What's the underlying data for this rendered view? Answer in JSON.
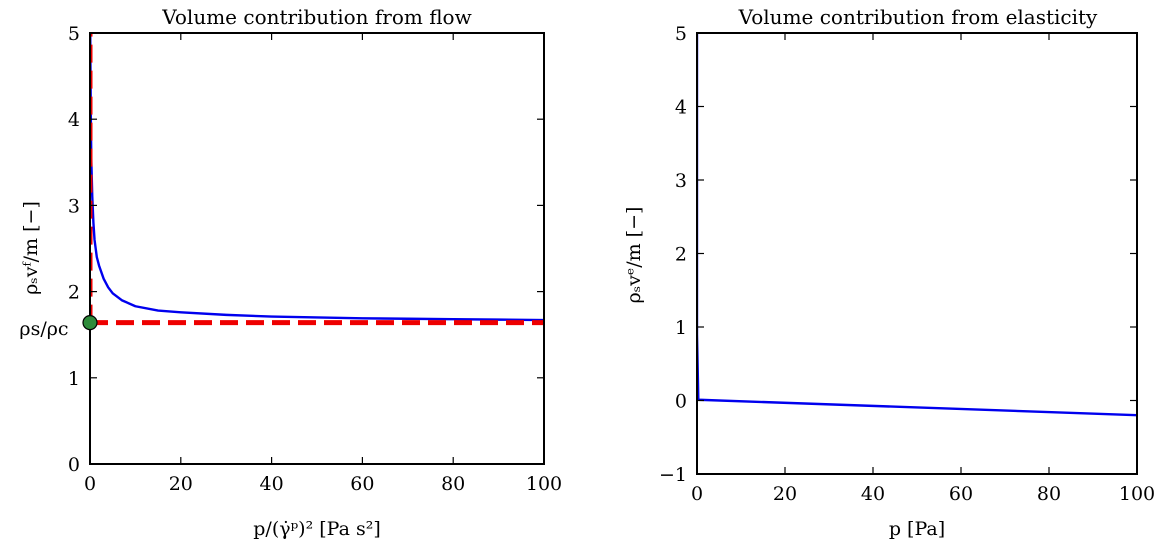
{
  "chart_data": [
    {
      "type": "line",
      "title": "Volume contribution from flow",
      "xlabel": "p/(γ̇ᵖ)² [Pa s²]",
      "ylabel": "ρₛvᶠ/m [−]",
      "xlim": [
        0,
        100
      ],
      "ylim": [
        0,
        5
      ],
      "xticks": [
        0,
        20,
        40,
        60,
        80,
        100
      ],
      "yticks": [
        0,
        1,
        2,
        3,
        4,
        5
      ],
      "annotation_label": "ρs/ρc",
      "marker": {
        "x": 0,
        "y": 1.64,
        "color": "#2e8b3a"
      },
      "series": [
        {
          "style": "solid",
          "color": "#0000ee",
          "x": [
            0.05,
            0.1,
            0.2,
            0.3,
            0.5,
            0.75,
            1,
            1.5,
            2,
            3,
            4,
            5,
            7,
            10,
            15,
            20,
            30,
            40,
            50,
            60,
            70,
            80,
            90,
            100
          ],
          "y": [
            5.0,
            4.6,
            3.9,
            3.5,
            3.1,
            2.8,
            2.6,
            2.4,
            2.3,
            2.15,
            2.05,
            1.98,
            1.9,
            1.83,
            1.78,
            1.76,
            1.73,
            1.71,
            1.7,
            1.69,
            1.685,
            1.68,
            1.675,
            1.67
          ]
        },
        {
          "style": "dashed",
          "color": "#ee0000",
          "x": [
            0,
            100
          ],
          "y": [
            1.64,
            1.64
          ]
        },
        {
          "style": "dashed",
          "color": "#ee0000",
          "x": [
            0,
            0
          ],
          "y": [
            1.64,
            5
          ]
        }
      ]
    },
    {
      "type": "line",
      "title": "Volume contribution from elasticity",
      "xlabel": "p [Pa]",
      "ylabel": "ρₛvᵉ/m [−]",
      "xlim": [
        0,
        100
      ],
      "ylim": [
        -1,
        5
      ],
      "xticks": [
        0,
        20,
        40,
        60,
        80,
        100
      ],
      "yticks": [
        -1,
        0,
        1,
        2,
        3,
        4,
        5
      ],
      "series": [
        {
          "style": "solid",
          "color": "#0000ee",
          "x": [
            0,
            0,
            0.3,
            100
          ],
          "y": [
            5,
            0.9,
            0.01,
            -0.2
          ]
        }
      ]
    }
  ]
}
